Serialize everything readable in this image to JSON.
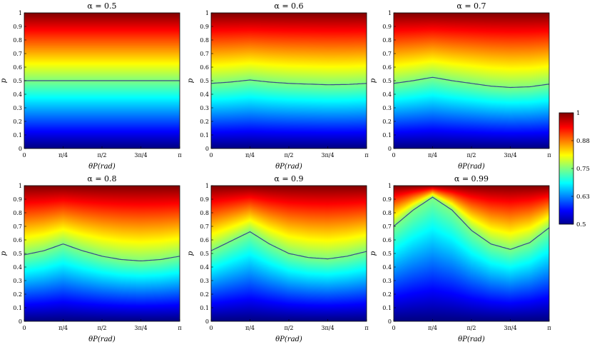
{
  "chart_data": {
    "type": "heatmap",
    "xlabel": "θP(rad)",
    "ylabel": "p",
    "x_ticks": [
      "0",
      "π/4",
      "π/2",
      "3π/4",
      "π"
    ],
    "y_ticks": [
      "0",
      "0.1",
      "0.2",
      "0.3",
      "0.4",
      "0.5",
      "0.6",
      "0.7",
      "0.8",
      "0.9",
      "1"
    ],
    "xlim": [
      0,
      3.1416
    ],
    "ylim": [
      0,
      1
    ],
    "colorbar": {
      "min": 0.5,
      "max": 1,
      "ticks": [
        "0.5",
        "0.63",
        "0.75",
        "0.88",
        "1"
      ],
      "colormap": "jet"
    },
    "panels": [
      {
        "title": "α = 0.5",
        "alpha": 0.5,
        "contour_x": [
          0,
          0.3927,
          0.7854,
          1.1781,
          1.5708,
          1.9635,
          2.3562,
          2.7489,
          3.1416
        ],
        "contour_p": [
          0.5,
          0.5,
          0.5,
          0.5,
          0.5,
          0.5,
          0.5,
          0.5,
          0.5
        ]
      },
      {
        "title": "α = 0.6",
        "alpha": 0.6,
        "contour_x": [
          0,
          0.3927,
          0.7854,
          1.1781,
          1.5708,
          1.9635,
          2.3562,
          2.7489,
          3.1416
        ],
        "contour_p": [
          0.48,
          0.49,
          0.505,
          0.49,
          0.48,
          0.475,
          0.47,
          0.472,
          0.48
        ]
      },
      {
        "title": "α = 0.7",
        "alpha": 0.7,
        "contour_x": [
          0,
          0.3927,
          0.7854,
          1.1781,
          1.5708,
          1.9635,
          2.3562,
          2.7489,
          3.1416
        ],
        "contour_p": [
          0.48,
          0.5,
          0.525,
          0.5,
          0.48,
          0.46,
          0.45,
          0.455,
          0.475
        ]
      },
      {
        "title": "α = 0.8",
        "alpha": 0.8,
        "contour_x": [
          0,
          0.3927,
          0.7854,
          1.1781,
          1.5708,
          1.9635,
          2.3562,
          2.7489,
          3.1416
        ],
        "contour_p": [
          0.49,
          0.52,
          0.57,
          0.52,
          0.48,
          0.455,
          0.445,
          0.455,
          0.48
        ]
      },
      {
        "title": "α = 0.9",
        "alpha": 0.9,
        "contour_x": [
          0,
          0.3927,
          0.7854,
          1.1781,
          1.5708,
          1.9635,
          2.3562,
          2.7489,
          3.1416
        ],
        "contour_p": [
          0.52,
          0.59,
          0.66,
          0.57,
          0.5,
          0.47,
          0.46,
          0.48,
          0.515
        ]
      },
      {
        "title": "α = 0.99",
        "alpha": 0.99,
        "contour_x": [
          0,
          0.3927,
          0.7854,
          1.1781,
          1.5708,
          1.9635,
          2.3562,
          2.7489,
          3.1416
        ],
        "contour_p": [
          0.7,
          0.82,
          0.915,
          0.82,
          0.67,
          0.57,
          0.53,
          0.58,
          0.69
        ]
      }
    ]
  }
}
